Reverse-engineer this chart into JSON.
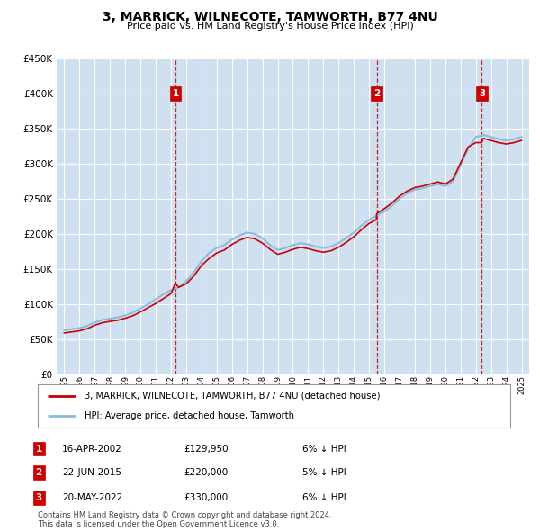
{
  "title": "3, MARRICK, WILNECOTE, TAMWORTH, B77 4NU",
  "subtitle": "Price paid vs. HM Land Registry's House Price Index (HPI)",
  "ylim": [
    0,
    450000
  ],
  "yticks": [
    0,
    50000,
    100000,
    150000,
    200000,
    250000,
    300000,
    350000,
    400000,
    450000
  ],
  "xlim": [
    1994.5,
    2025.5
  ],
  "plot_bg_color": "#cfe0f0",
  "sale_color": "#cc0000",
  "hpi_color": "#8bbcdc",
  "vline_color": "#cc0000",
  "marker_y": 400000,
  "transactions": [
    {
      "label": "1",
      "date": "16-APR-2002",
      "price": 129950,
      "hpi_pct": "6%",
      "x_year": 2002.3
    },
    {
      "label": "2",
      "date": "22-JUN-2015",
      "price": 220000,
      "hpi_pct": "5%",
      "x_year": 2015.5
    },
    {
      "label": "3",
      "date": "20-MAY-2022",
      "price": 330000,
      "hpi_pct": "6%",
      "x_year": 2022.4
    }
  ],
  "legend_sale_label": "3, MARRICK, WILNECOTE, TAMWORTH, B77 4NU (detached house)",
  "legend_hpi_label": "HPI: Average price, detached house, Tamworth",
  "footer1": "Contains HM Land Registry data © Crown copyright and database right 2024.",
  "footer2": "This data is licensed under the Open Government Licence v3.0.",
  "hpi_years": [
    1995,
    1995.5,
    1996,
    1996.5,
    1997,
    1997.5,
    1998,
    1998.5,
    1999,
    1999.5,
    2000,
    2000.5,
    2001,
    2001.5,
    2002,
    2002.5,
    2003,
    2003.5,
    2004,
    2004.5,
    2005,
    2005.5,
    2006,
    2006.5,
    2007,
    2007.5,
    2008,
    2008.5,
    2009,
    2009.5,
    2010,
    2010.5,
    2011,
    2011.5,
    2012,
    2012.5,
    2013,
    2013.5,
    2014,
    2014.5,
    2015,
    2015.5,
    2016,
    2016.5,
    2017,
    2017.5,
    2018,
    2018.5,
    2019,
    2019.5,
    2020,
    2020.5,
    2021,
    2021.5,
    2022,
    2022.5,
    2023,
    2023.5,
    2024,
    2024.5,
    2025
  ],
  "hpi_values": [
    63000,
    64500,
    66000,
    69000,
    74000,
    77500,
    79500,
    81000,
    84000,
    88000,
    94000,
    100000,
    107000,
    114000,
    120000,
    124000,
    133000,
    145000,
    161000,
    173000,
    180000,
    184000,
    192000,
    198000,
    202000,
    200000,
    194000,
    184000,
    177000,
    180000,
    184000,
    187000,
    185000,
    182000,
    180000,
    182000,
    187000,
    194000,
    202000,
    212000,
    220000,
    226000,
    232000,
    240000,
    250000,
    258000,
    263000,
    265000,
    268000,
    271000,
    268000,
    275000,
    298000,
    321000,
    338000,
    341000,
    338000,
    335000,
    333000,
    335000,
    338000
  ],
  "sale_years": [
    1995,
    1995.5,
    1996,
    1996.5,
    1997,
    1997.5,
    1998,
    1998.5,
    1999,
    1999.5,
    2000,
    2000.5,
    2001,
    2001.5,
    2002,
    2002.29,
    2002.5,
    2003,
    2003.5,
    2004,
    2004.5,
    2005,
    2005.5,
    2006,
    2006.5,
    2007,
    2007.5,
    2008,
    2008.5,
    2009,
    2009.5,
    2010,
    2010.5,
    2011,
    2011.5,
    2012,
    2012.5,
    2013,
    2013.5,
    2014,
    2014.5,
    2015,
    2015.47,
    2015.5,
    2016,
    2016.5,
    2017,
    2017.5,
    2018,
    2018.5,
    2019,
    2019.5,
    2020,
    2020.5,
    2021,
    2021.5,
    2022,
    2022.38,
    2022.5,
    2023,
    2023.5,
    2024,
    2024.5,
    2025
  ],
  "sale_values": [
    59000,
    60500,
    62000,
    65000,
    70000,
    73500,
    75500,
    77000,
    80000,
    83500,
    89000,
    95000,
    101000,
    108000,
    115000,
    129950,
    124000,
    129000,
    140000,
    155000,
    165000,
    173000,
    177000,
    185000,
    191000,
    195000,
    193000,
    187000,
    178000,
    171000,
    174000,
    178000,
    181000,
    179000,
    176000,
    174000,
    176000,
    181000,
    188000,
    196000,
    206000,
    215000,
    220000,
    229000,
    236000,
    244000,
    254000,
    261000,
    266000,
    268000,
    271000,
    274000,
    271000,
    278000,
    301000,
    324000,
    330000,
    330000,
    336000,
    333000,
    330000,
    328000,
    330000,
    333000
  ],
  "xtick_years": [
    1995,
    1996,
    1997,
    1998,
    1999,
    2000,
    2001,
    2002,
    2003,
    2004,
    2005,
    2006,
    2007,
    2008,
    2009,
    2010,
    2011,
    2012,
    2013,
    2014,
    2015,
    2016,
    2017,
    2018,
    2019,
    2020,
    2021,
    2022,
    2023,
    2024,
    2025
  ]
}
